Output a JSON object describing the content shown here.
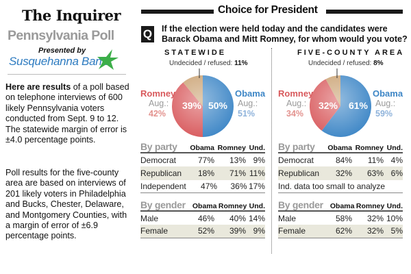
{
  "branding": {
    "newspaper": "The Inquirer",
    "poll_name": "Pennsylvania Poll",
    "presented_by": "Presented by",
    "sponsor": "Susquehanna Bank"
  },
  "intro": {
    "lead": "Here are results",
    "text": " of a poll based on telephone interviews of 600 likely Pennsylvania voters conducted from Sept. 9 to 12. The statewide margin of error is ±4.0 percentage points.",
    "text2": "Poll results for the five-county area are based on interviews of 201 likely voters in Philadelphia and Bucks, Chester, Delaware, and Montgomery Counties, with a margin of error of ±6.9 percentage points."
  },
  "header": {
    "title": "Choice for President",
    "q_label": "Q",
    "question": "If the election were held today and the candidates were Barack Obama and Mitt Romney, for whom would you vote?"
  },
  "colors": {
    "obama": "#3d86c6",
    "romney": "#d8595c",
    "undecided": "#c9a070",
    "obama_aug": "#8fb3db",
    "romney_aug": "#e3938f"
  },
  "chart_data": [
    {
      "type": "pie",
      "title": "STATEWIDE",
      "labels": [
        "Obama",
        "Romney",
        "Undecided / refused"
      ],
      "values": [
        50,
        39,
        11
      ],
      "value_labels": [
        "50%",
        "39%",
        "11%"
      ],
      "undecided_label": "Undecided / refused:",
      "aug_label": "Aug.:",
      "aug": {
        "Obama": "51%",
        "Romney": "42%"
      },
      "by_party": {
        "label": "By party",
        "columns": [
          "Obama",
          "Romney",
          "Und."
        ],
        "rows": [
          {
            "name": "Democrat",
            "values": [
              "77%",
              "13%",
              "9%"
            ]
          },
          {
            "name": "Republican",
            "values": [
              "18%",
              "71%",
              "11%"
            ]
          },
          {
            "name": "Independent",
            "values": [
              "47%",
              "36%",
              "17%"
            ]
          }
        ]
      },
      "by_gender": {
        "label": "By gender",
        "columns": [
          "Obama",
          "Romney",
          "Und."
        ],
        "rows": [
          {
            "name": "Male",
            "values": [
              "46%",
              "40%",
              "14%"
            ]
          },
          {
            "name": "Female",
            "values": [
              "52%",
              "39%",
              "9%"
            ]
          }
        ]
      }
    },
    {
      "type": "pie",
      "title": "FIVE-COUNTY AREA",
      "labels": [
        "Obama",
        "Romney",
        "Undecided / refused"
      ],
      "values": [
        61,
        32,
        8
      ],
      "value_labels": [
        "61%",
        "32%",
        "8%"
      ],
      "undecided_label": "Undecided / refused:",
      "aug_label": "Aug.:",
      "aug": {
        "Obama": "59%",
        "Romney": "34%"
      },
      "by_party": {
        "label": "By party",
        "columns": [
          "Obama",
          "Romney",
          "Und."
        ],
        "rows": [
          {
            "name": "Democrat",
            "values": [
              "84%",
              "11%",
              "4%"
            ]
          },
          {
            "name": "Republican",
            "values": [
              "32%",
              "63%",
              "6%"
            ]
          }
        ],
        "note": "Ind. data too small to analyze"
      },
      "by_gender": {
        "label": "By gender",
        "columns": [
          "Obama",
          "Romney",
          "Und."
        ],
        "rows": [
          {
            "name": "Male",
            "values": [
              "58%",
              "32%",
              "10%"
            ]
          },
          {
            "name": "Female",
            "values": [
              "62%",
              "32%",
              "5%"
            ]
          }
        ]
      }
    }
  ]
}
